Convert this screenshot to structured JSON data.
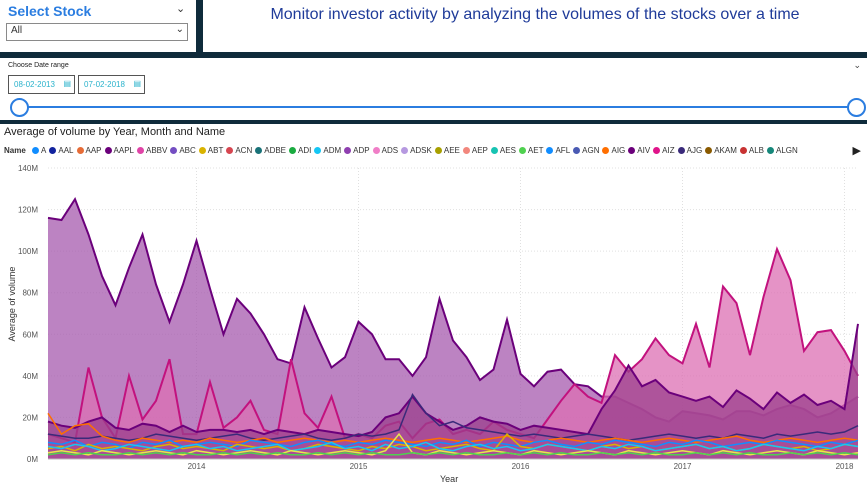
{
  "slicer": {
    "title": "Select Stock",
    "value": "All"
  },
  "header": {
    "title": "Monitor investor activity by analyzing the volumes of the stocks over a time"
  },
  "date_range": {
    "label": "Choose Date range",
    "start": "08-02-2013",
    "end": "07-02-2018"
  },
  "chart": {
    "title": "Average of volume by Year, Month and Name",
    "legend_title": "Name",
    "legend": [
      {
        "name": "A",
        "color": "#118dff"
      },
      {
        "name": "AAL",
        "color": "#12239e"
      },
      {
        "name": "AAP",
        "color": "#e66c37"
      },
      {
        "name": "AAPL",
        "color": "#6b007b"
      },
      {
        "name": "ABBV",
        "color": "#e044a7"
      },
      {
        "name": "ABC",
        "color": "#744ec2"
      },
      {
        "name": "ABT",
        "color": "#d9b300"
      },
      {
        "name": "ACN",
        "color": "#d64550"
      },
      {
        "name": "ADBE",
        "color": "#197278"
      },
      {
        "name": "ADI",
        "color": "#1aab40"
      },
      {
        "name": "ADM",
        "color": "#15c6f4"
      },
      {
        "name": "ADP",
        "color": "#8f3fb0"
      },
      {
        "name": "ADS",
        "color": "#f07ec7"
      },
      {
        "name": "ADSK",
        "color": "#b699e0"
      },
      {
        "name": "AEE",
        "color": "#a8a000"
      },
      {
        "name": "AEP",
        "color": "#f2877d"
      },
      {
        "name": "AES",
        "color": "#17c3b2"
      },
      {
        "name": "AET",
        "color": "#4fd14f"
      },
      {
        "name": "AFL",
        "color": "#118dff"
      },
      {
        "name": "AGN",
        "color": "#4a5ab3"
      },
      {
        "name": "AIG",
        "color": "#ff6f00"
      },
      {
        "name": "AIV",
        "color": "#6b007b"
      },
      {
        "name": "AIZ",
        "color": "#e0148a"
      },
      {
        "name": "AJG",
        "color": "#3a2a7a"
      },
      {
        "name": "AKAM",
        "color": "#8a5a00"
      },
      {
        "name": "ALB",
        "color": "#c83232"
      },
      {
        "name": "ALGN",
        "color": "#16877a"
      }
    ]
  },
  "chart_data": {
    "type": "area",
    "title": "Average of volume by Year, Month and Name",
    "xlabel": "Year",
    "ylabel": "Average of volume",
    "x_ticks": [
      "2014",
      "2015",
      "2016",
      "2017",
      "2018"
    ],
    "y_ticks": [
      "0M",
      "20M",
      "40M",
      "60M",
      "80M",
      "100M",
      "120M",
      "140M"
    ],
    "ylim": [
      0,
      140
    ],
    "x_start": "2013-02",
    "x_end": "2018-02",
    "series": [
      {
        "name": "AAPL",
        "color": "#6b007b",
        "fill": "#a65aad",
        "values": [
          116,
          115,
          125,
          108,
          88,
          74,
          92,
          108,
          84,
          66,
          84,
          105,
          82,
          60,
          77,
          70,
          60,
          48,
          46,
          73,
          58,
          44,
          49,
          66,
          60,
          48,
          48,
          40,
          49,
          77,
          57,
          49,
          38,
          43,
          67,
          41,
          35,
          42,
          43,
          36,
          35,
          30,
          30,
          27,
          24,
          20,
          18,
          23,
          22,
          21,
          19,
          23,
          23,
          21,
          24,
          26,
          24,
          20,
          22,
          26,
          30
        ]
      },
      {
        "name": "AIZ",
        "color": "#c2127e",
        "fill": "#dc6fb3",
        "values": [
          12,
          10,
          8,
          44,
          20,
          10,
          40,
          19,
          28,
          48,
          12,
          12,
          37,
          15,
          20,
          28,
          14,
          12,
          48,
          22,
          15,
          30,
          10,
          12,
          10,
          16,
          18,
          10,
          17,
          19,
          12,
          14,
          12,
          18,
          14,
          12,
          10,
          19,
          28,
          36,
          30,
          27,
          50,
          42,
          48,
          58,
          50,
          46,
          65,
          44,
          83,
          75,
          50,
          78,
          101,
          86,
          52,
          61,
          62,
          52,
          40
        ]
      },
      {
        "name": "ABBV",
        "color": "#6b007b",
        "fill": "#9b3f8c",
        "values": [
          18,
          16,
          15,
          18,
          20,
          15,
          14,
          17,
          16,
          13,
          16,
          13,
          14,
          14,
          13,
          14,
          12,
          14,
          13,
          12,
          14,
          13,
          12,
          11,
          13,
          20,
          22,
          30,
          22,
          18,
          14,
          16,
          20,
          18,
          17,
          14,
          16,
          15,
          14,
          13,
          12,
          24,
          33,
          45,
          35,
          38,
          32,
          30,
          28,
          30,
          25,
          33,
          29,
          24,
          32,
          27,
          31,
          26,
          28,
          24,
          65
        ]
      },
      {
        "name": "AJG",
        "color": "#3a2a7a",
        "fill": "none",
        "values": [
          12,
          11,
          10,
          10,
          11,
          10,
          9,
          10,
          12,
          11,
          10,
          9,
          10,
          11,
          12,
          10,
          9,
          10,
          11,
          12,
          10,
          9,
          10,
          12,
          11,
          12,
          14,
          31,
          22,
          16,
          18,
          15,
          14,
          13,
          12,
          11,
          12,
          11,
          10,
          11,
          12,
          11,
          10,
          9,
          10,
          11,
          12,
          11,
          10,
          11,
          10,
          12,
          11,
          10,
          12,
          11,
          12,
          13,
          12,
          13,
          16
        ]
      },
      {
        "name": "AIG",
        "color": "#ff6f00",
        "fill": "none",
        "values": [
          22,
          12,
          16,
          17,
          11,
          9,
          8,
          10,
          9,
          8,
          9,
          8,
          10,
          9,
          8,
          9,
          10,
          8,
          9,
          10,
          9,
          8,
          9,
          8,
          9,
          10,
          9,
          8,
          9,
          10,
          9,
          8,
          9,
          10,
          11,
          9,
          8,
          9,
          10,
          9,
          8,
          9,
          10,
          9,
          8,
          9,
          10,
          9,
          8,
          9,
          10,
          11,
          9,
          8,
          9,
          10,
          9,
          8,
          9,
          10,
          9
        ]
      },
      {
        "name": "A",
        "color": "#118dff",
        "fill": "none",
        "values": [
          8,
          7,
          9,
          6,
          8,
          7,
          5,
          8,
          7,
          9,
          6,
          7,
          8,
          7,
          6,
          9,
          8,
          7,
          6,
          8,
          9,
          7,
          6,
          8,
          7,
          9,
          8,
          7,
          6,
          8,
          7,
          9,
          6,
          8,
          7,
          6,
          8,
          9,
          7,
          6,
          8,
          7,
          9,
          8,
          7,
          6,
          8,
          7,
          9,
          8,
          6,
          7,
          8,
          7,
          9,
          8,
          7,
          6,
          8,
          7,
          9
        ]
      },
      {
        "name": "ABT",
        "color": "#d9b300",
        "fill": "none",
        "values": [
          5,
          6,
          4,
          7,
          5,
          6,
          5,
          4,
          6,
          7,
          5,
          6,
          5,
          4,
          7,
          6,
          5,
          6,
          4,
          5,
          7,
          6,
          5,
          4,
          6,
          5,
          7,
          6,
          4,
          5,
          6,
          7,
          5,
          4,
          12,
          6,
          5,
          7,
          6,
          5,
          4,
          6,
          7,
          5,
          6,
          4,
          5,
          6,
          7,
          5,
          6,
          4,
          5,
          7,
          6,
          5,
          6,
          4,
          5,
          7,
          6
        ]
      },
      {
        "name": "ADM",
        "color": "#15c6f4",
        "fill": "none",
        "values": [
          6,
          5,
          7,
          6,
          4,
          5,
          7,
          6,
          5,
          4,
          6,
          7,
          5,
          6,
          4,
          5,
          6,
          7,
          4,
          5,
          6,
          8,
          5,
          6,
          4,
          7,
          5,
          6,
          8,
          5,
          4,
          6,
          7,
          5,
          6,
          4,
          5,
          7,
          6,
          5,
          4,
          6,
          5,
          7,
          6,
          4,
          5,
          6,
          7,
          5,
          6,
          4,
          5,
          7,
          6,
          5,
          4,
          6,
          5,
          7,
          6
        ]
      },
      {
        "name": "AEE",
        "color": "#e8e84a",
        "fill": "none",
        "values": [
          3,
          4,
          3,
          2,
          4,
          3,
          2,
          3,
          4,
          3,
          2,
          4,
          3,
          2,
          3,
          4,
          3,
          2,
          4,
          3,
          2,
          3,
          4,
          3,
          2,
          4,
          12,
          3,
          2,
          4,
          3,
          2,
          3,
          4,
          3,
          2,
          4,
          3,
          2,
          3,
          4,
          3,
          2,
          4,
          3,
          2,
          3,
          4,
          3,
          2,
          4,
          3,
          2,
          3,
          4,
          3,
          2,
          4,
          3,
          2,
          3
        ]
      },
      {
        "name": "AET",
        "color": "#4fd14f",
        "fill": "none",
        "values": [
          2,
          3,
          2,
          3,
          2,
          2,
          3,
          2,
          3,
          2,
          3,
          2,
          2,
          3,
          2,
          3,
          2,
          3,
          2,
          2,
          3,
          2,
          3,
          2,
          3,
          2,
          2,
          3,
          2,
          3,
          2,
          3,
          2,
          2,
          3,
          2,
          3,
          2,
          3,
          2,
          2,
          3,
          2,
          3,
          2,
          3,
          2,
          2,
          3,
          2,
          3,
          2,
          3,
          2,
          2,
          3,
          2,
          3,
          2,
          3,
          2
        ]
      }
    ]
  }
}
